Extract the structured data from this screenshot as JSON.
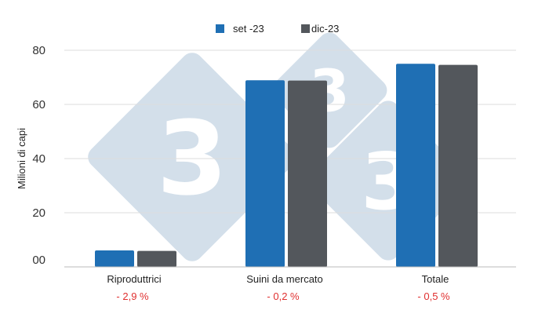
{
  "colors": {
    "series_1": "#1f6fb4",
    "series_2": "#53575c",
    "grid": "#dddddd",
    "axis": "#bbbbbb",
    "change_text": "#e03030",
    "watermark": "#d3dfea"
  },
  "watermark": {
    "icon": "333-logo-watermark",
    "digits": [
      "3",
      "3",
      "3"
    ]
  },
  "chart_data": {
    "type": "bar",
    "ylabel": "Milioni di capi",
    "ylim": [
      0,
      80
    ],
    "yticks": [
      {
        "value": 0,
        "label": "00"
      },
      {
        "value": 20,
        "label": "20"
      },
      {
        "value": 40,
        "label": "40"
      },
      {
        "value": 60,
        "label": "60"
      },
      {
        "value": 80,
        "label": "80"
      }
    ],
    "grid": true,
    "legend_position": "top-center",
    "categories": [
      "Riproduttrici",
      "Suini da mercato",
      "Totale"
    ],
    "changes": [
      "- 2,9 %",
      "- 0,2 %",
      "- 0,5 %"
    ],
    "series": [
      {
        "name": "set -23",
        "values": [
          6.1,
          68.9,
          75.0
        ]
      },
      {
        "name": "dic-23",
        "values": [
          5.9,
          68.8,
          74.6
        ]
      }
    ]
  }
}
